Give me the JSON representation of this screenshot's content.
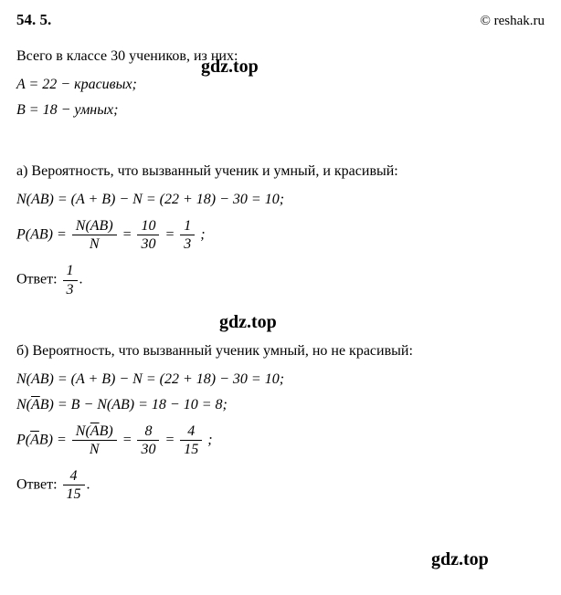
{
  "header": {
    "problem_number": "54. 5.",
    "copyright": "© reshak.ru"
  },
  "intro": {
    "total_text": "Всего в классе 30 учеников, из них:",
    "A_line": "A = 22 − красивых;",
    "B_line": "B = 18 − умных;"
  },
  "watermarks": {
    "w1": "gdz.top",
    "w2": "gdz.top",
    "w3": "gdz.top"
  },
  "part_a": {
    "label": "а) Вероятность, что вызванный ученик и умный, и красивый:",
    "N_AB_line": "N(AB) = (A + B) − N = (22 + 18) − 30 = 10;",
    "P_label": "P(AB) =",
    "frac1_top": "N(AB)",
    "frac1_bot": "N",
    "eq1": "=",
    "frac2_top": "10",
    "frac2_bot": "30",
    "eq2": "=",
    "frac3_top": "1",
    "frac3_bot": "3",
    "end": ";",
    "answer_label": "Ответ:",
    "ans_top": "1",
    "ans_bot": "3",
    "ans_end": "."
  },
  "part_b": {
    "label": "б) Вероятность, что вызванный ученик умный, но не красивый:",
    "N_AB_line": "N(AB) = (A + B) − N = (22 + 18) − 30 = 10;",
    "N_AbarB_left": "N(",
    "N_AbarB_bar": "A",
    "N_AbarB_right": "B) = B − N(AB) = 18 − 10 = 8;",
    "P_left": "P(",
    "P_bar": "A",
    "P_right": "B) =",
    "frac1_top_left": "N(",
    "frac1_top_bar": "A",
    "frac1_top_right": "B)",
    "frac1_bot": "N",
    "eq1": "=",
    "frac2_top": "8",
    "frac2_bot": "30",
    "eq2": "=",
    "frac3_top": "4",
    "frac3_bot": "15",
    "end": ";",
    "answer_label": "Ответ:",
    "ans_top": "4",
    "ans_bot": "15",
    "ans_end": "."
  }
}
